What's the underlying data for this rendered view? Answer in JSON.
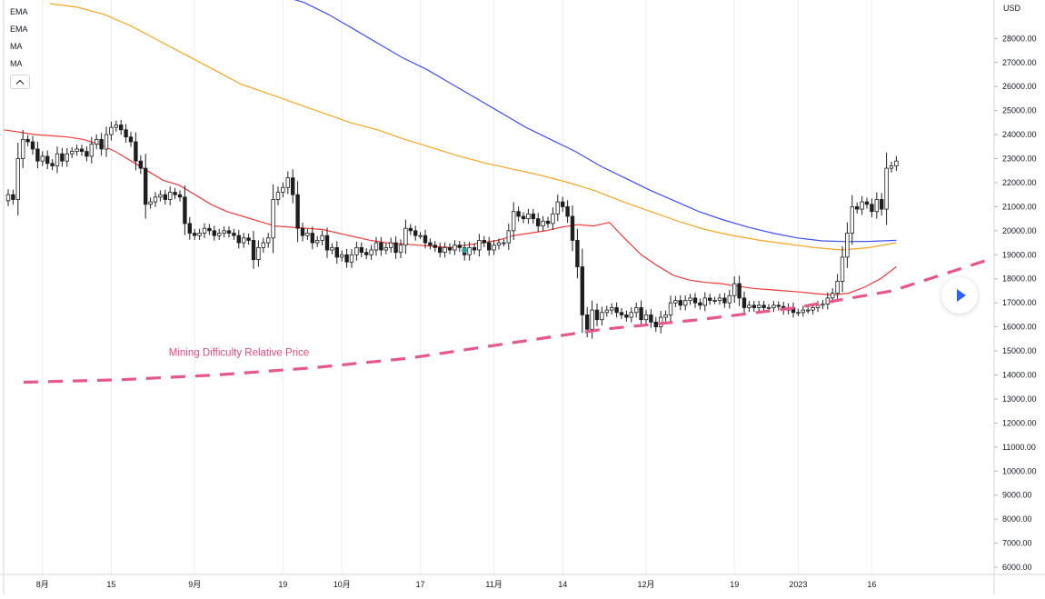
{
  "colors": {
    "ema_blue": "#3c4ff0",
    "ema_orange": "#f5a623",
    "ma_red": "#ef3b3b",
    "difficulty_line": "#e8568e",
    "candle_up": "#ffffff",
    "candle_down": "#1e1e1e",
    "marker": "#26a69a"
  },
  "legend": {
    "items": [
      "EMA",
      "EMA",
      "MA",
      "MA"
    ],
    "toggle_icon": "chevron-up-icon"
  },
  "controls": {
    "play_icon": "play-icon"
  },
  "chart_data": {
    "type": "candlestick",
    "currency": "USD",
    "ylim": [
      5700,
      29600
    ],
    "yticks": [
      6000,
      7000,
      8000,
      9000,
      10000,
      11000,
      12000,
      13000,
      14000,
      15000,
      16000,
      17000,
      18000,
      19000,
      20000,
      21000,
      22000,
      23000,
      24000,
      25000,
      26000,
      27000,
      28000
    ],
    "xlabels": [
      {
        "label": "8月",
        "index": 7
      },
      {
        "label": "15",
        "index": 21
      },
      {
        "label": "9月",
        "index": 38
      },
      {
        "label": "19",
        "index": 56
      },
      {
        "label": "10月",
        "index": 68
      },
      {
        "label": "17",
        "index": 84
      },
      {
        "label": "11月",
        "index": 99
      },
      {
        "label": "14",
        "index": 113
      },
      {
        "label": "12月",
        "index": 130
      },
      {
        "label": "19",
        "index": 148
      },
      {
        "label": "2023",
        "index": 161
      },
      {
        "label": "16",
        "index": 176
      }
    ],
    "close": [
      21500,
      21300,
      23000,
      23800,
      23700,
      23400,
      22900,
      23100,
      22800,
      22700,
      23200,
      22900,
      23200,
      23300,
      23400,
      23300,
      23100,
      23600,
      23800,
      23400,
      24000,
      24300,
      24400,
      24200,
      23900,
      23700,
      22900,
      22600,
      21100,
      21200,
      21400,
      21500,
      21300,
      21600,
      21500,
      21400,
      20300,
      19900,
      19800,
      19900,
      20100,
      20000,
      19800,
      19900,
      20000,
      19900,
      19800,
      19500,
      19700,
      19600,
      18800,
      19300,
      19500,
      19700,
      21300,
      21600,
      21800,
      22200,
      21500,
      20100,
      19800,
      19900,
      19500,
      19600,
      19800,
      19200,
      19300,
      18900,
      19000,
      18700,
      19000,
      19300,
      19100,
      19000,
      19200,
      19500,
      19200,
      19300,
      19500,
      19100,
      19400,
      20100,
      20000,
      19800,
      19800,
      19500,
      19400,
      19300,
      19100,
      19300,
      19200,
      19400,
      19300,
      19000,
      19300,
      19200,
      19600,
      19500,
      19200,
      19400,
      19500,
      19500,
      20000,
      20800,
      20600,
      20500,
      20700,
      20500,
      20200,
      20400,
      20300,
      20700,
      21200,
      21000,
      20600,
      19600,
      18500,
      16500,
      15900,
      16700,
      16300,
      16600,
      16700,
      16800,
      16600,
      16500,
      16400,
      16600,
      16800,
      16300,
      16500,
      16200,
      16000,
      16400,
      16500,
      17000,
      17100,
      16900,
      17100,
      17200,
      17000,
      16900,
      17200,
      17100,
      17100,
      17200,
      17000,
      17300,
      17800,
      17200,
      16800,
      16900,
      16800,
      16900,
      16800,
      16800,
      16900,
      16850,
      16700,
      16800,
      16600,
      16600,
      16700,
      16700,
      16800,
      16900,
      16950,
      17200,
      17400,
      17900,
      18900,
      19900,
      21000,
      20900,
      21200,
      21100,
      20800,
      21300,
      20900,
      22600,
      22700,
      22900
    ]
  },
  "indicators": {
    "ema_blue": [
      30000,
      29800,
      29500,
      29000,
      28400,
      27800,
      27200,
      26700,
      26100,
      25500,
      24900,
      24300,
      23800,
      23300,
      22700,
      22200,
      21700,
      21250,
      20800,
      20450,
      20150,
      19900,
      19700,
      19580,
      19550,
      19560,
      19600
    ],
    "ema_orange": [
      29450,
      29300,
      29000,
      28500,
      27900,
      27300,
      26700,
      26100,
      25700,
      25300,
      24900,
      24500,
      24200,
      23800,
      23450,
      23100,
      22800,
      22550,
      22300,
      22000,
      21650,
      21200,
      20800,
      20400,
      20050,
      19800,
      19600,
      19450,
      19300,
      19200,
      19300,
      19500
    ],
    "ma_red": [
      24200,
      24100,
      24000,
      23950,
      23900,
      23800,
      23600,
      23300,
      22900,
      22500,
      22100,
      21900,
      21500,
      21100,
      20800,
      20600,
      20400,
      20200,
      20150,
      20100,
      20050,
      19900,
      19750,
      19600,
      19500,
      19450,
      19400,
      19350,
      19300,
      19400,
      19500,
      19600,
      19800,
      19900,
      20000,
      20150,
      20250,
      20200,
      20350,
      19650,
      19000,
      18550,
      18150,
      17950,
      17850,
      17800,
      17700,
      17600,
      17550,
      17500,
      17450,
      17380,
      17330,
      17400,
      17650,
      18000,
      18500
    ],
    "mining_difficulty_relative_price": {
      "label": "Mining Difficulty Relative Price",
      "values": [
        13700,
        13800,
        14000,
        14300,
        14700,
        15300,
        15900,
        16300,
        16800,
        17500,
        18800
      ]
    }
  }
}
